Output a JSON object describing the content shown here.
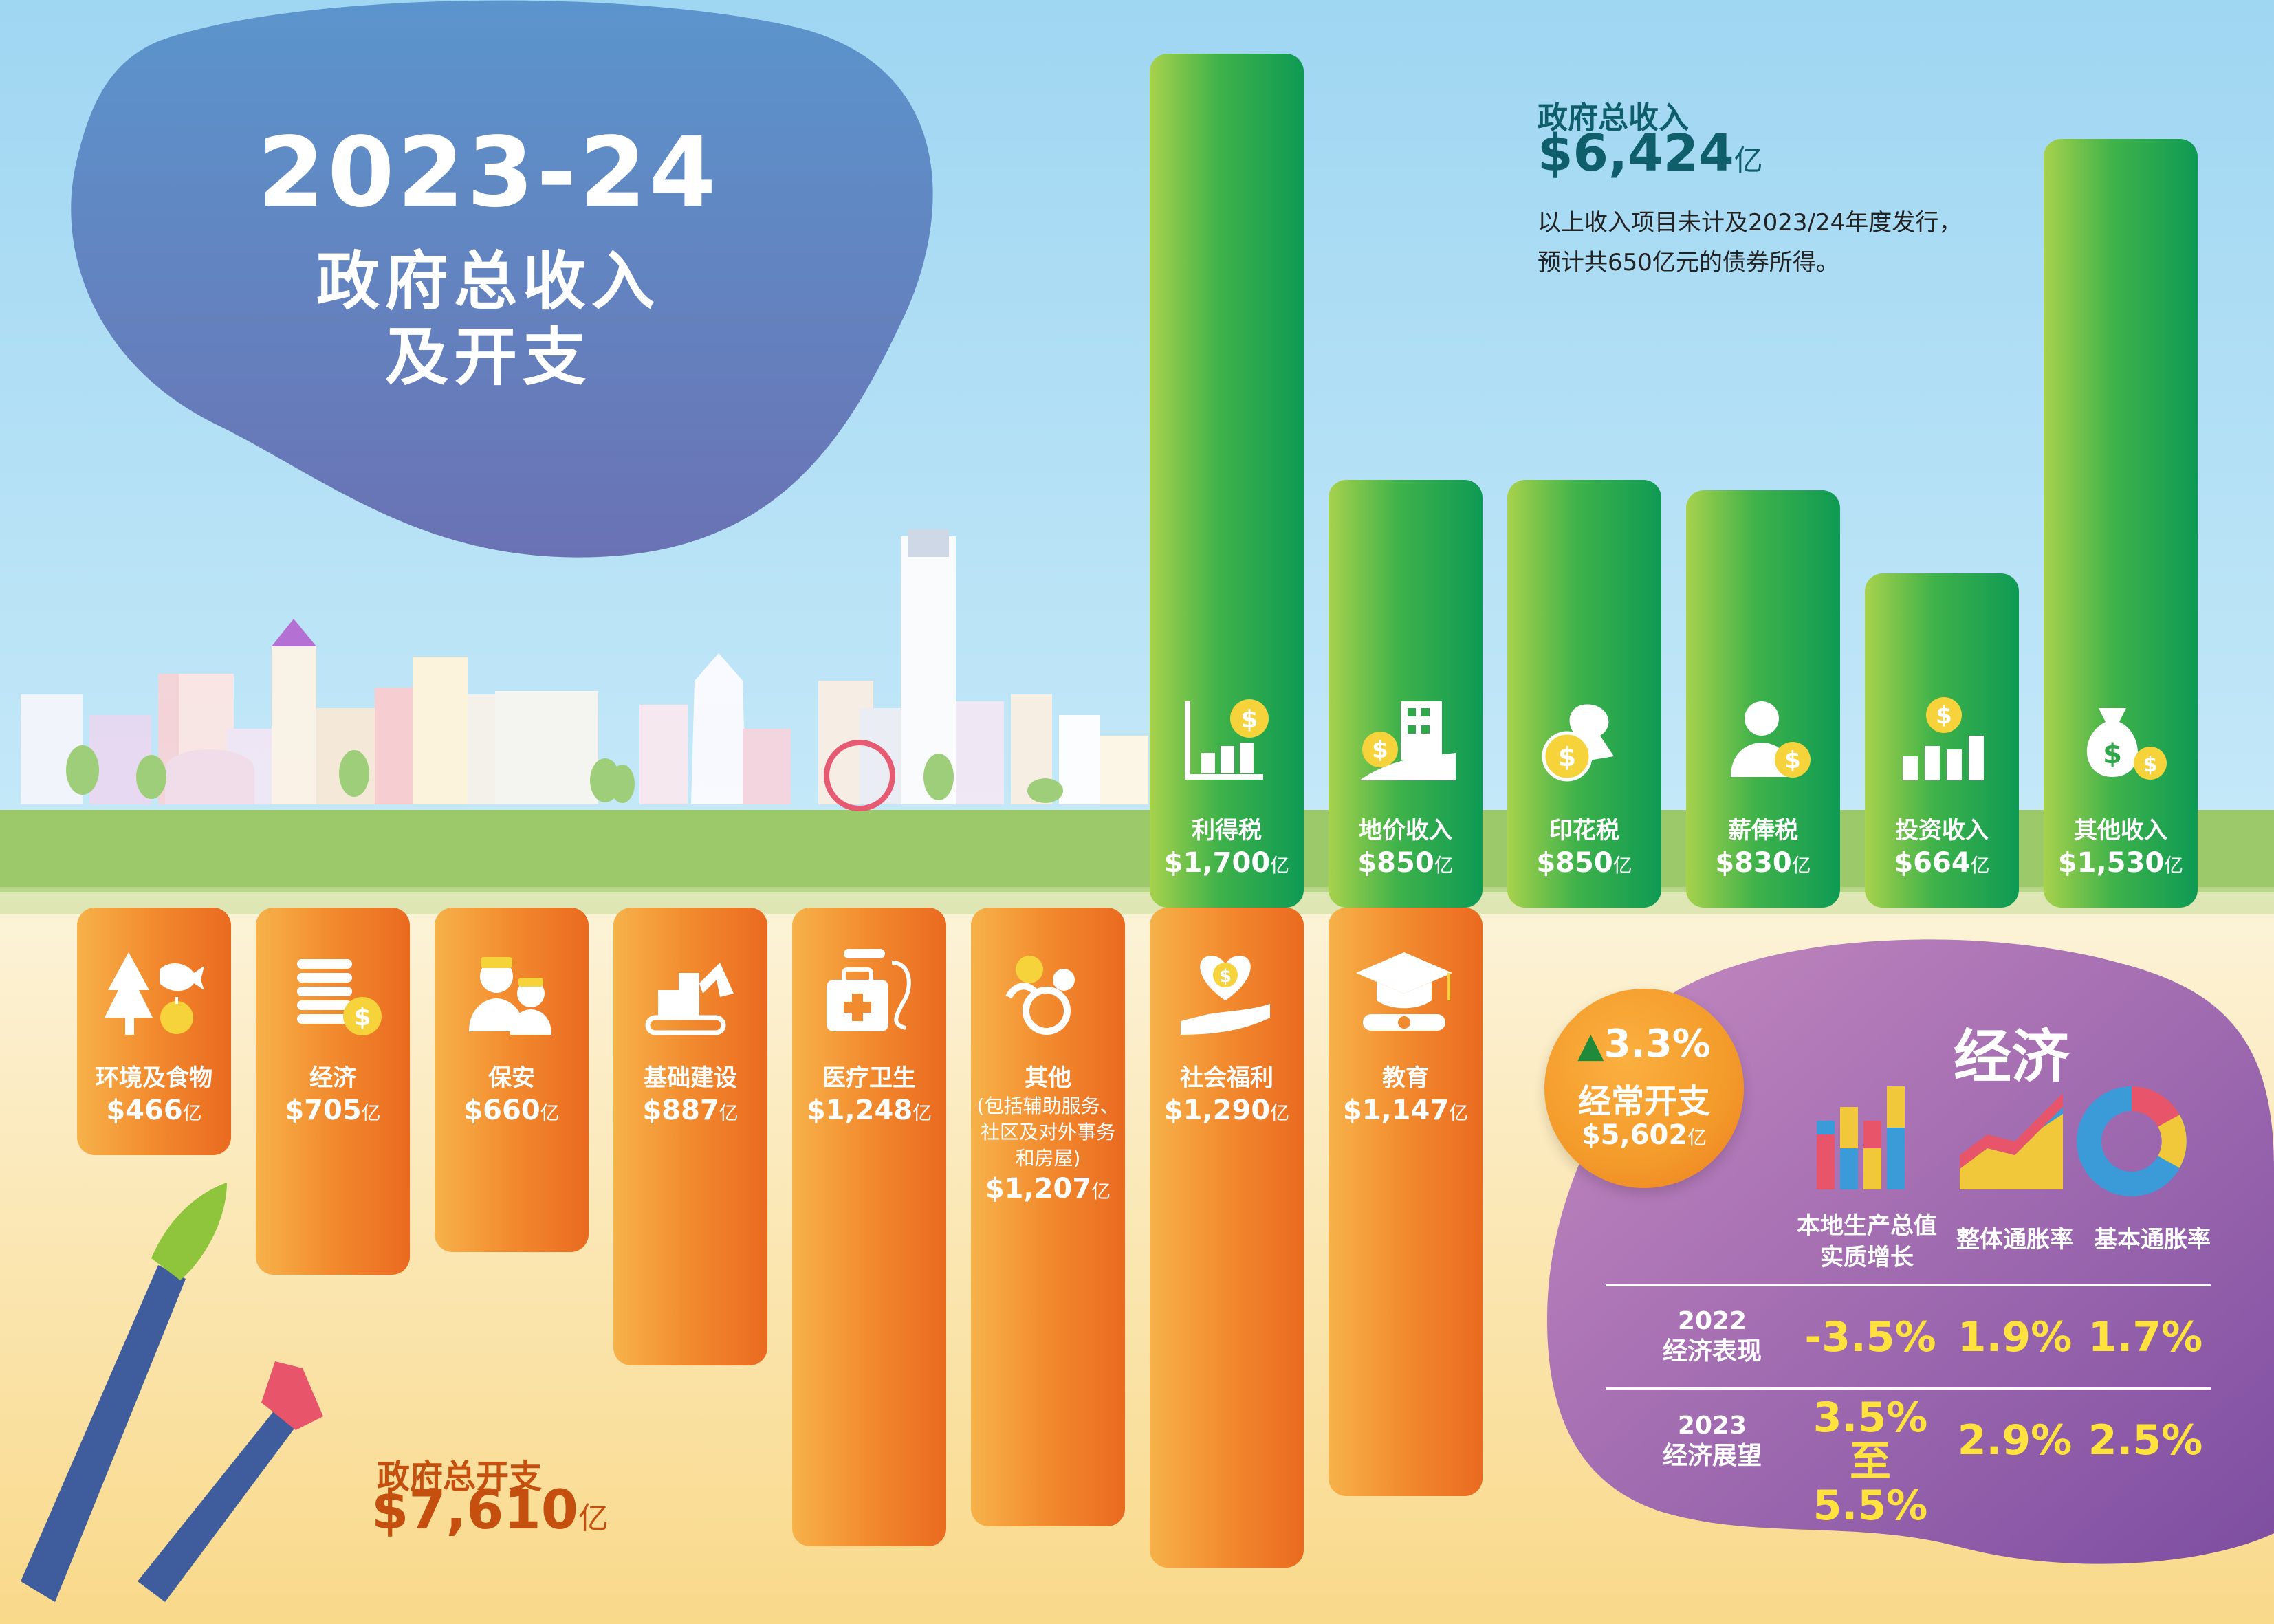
{
  "title": {
    "year": "2023-24",
    "line1": "政府总收入",
    "line2": "及开支"
  },
  "revenue": {
    "title": "政府总收入",
    "total": "$6,424",
    "unit": "亿",
    "note_line1": "以上收入项目未计及2023/24年度发行，",
    "note_line2": "预计共650亿元的债券所得。"
  },
  "expenditure": {
    "title": "政府总开支",
    "total": "$7,610",
    "unit": "亿"
  },
  "chart_data": {
    "type": "bar",
    "unit": "亿",
    "revenue_series": [
      {
        "label": "利得税",
        "value_label": "$1,700",
        "value": 1700,
        "icon": "profits-tax-chart-icon"
      },
      {
        "label": "地价收入",
        "value_label": "$850",
        "value": 850,
        "icon": "land-building-icon"
      },
      {
        "label": "印花税",
        "value_label": "$850",
        "value": 850,
        "icon": "stamp-icon"
      },
      {
        "label": "薪俸税",
        "value_label": "$830",
        "value": 830,
        "icon": "salaries-person-icon"
      },
      {
        "label": "投资收入",
        "value_label": "$664",
        "value": 664,
        "icon": "investment-bars-icon"
      },
      {
        "label": "其他收入",
        "value_label": "$1,530",
        "value": 1530,
        "icon": "money-bag-icon"
      }
    ],
    "expenditure_series": [
      {
        "label": "环境及食物",
        "value_label": "$466",
        "value": 466,
        "icon": "tree-fish-apple-icon"
      },
      {
        "label": "经济",
        "value_label": "$705",
        "value": 705,
        "icon": "coin-stack-icon"
      },
      {
        "label": "保安",
        "value_label": "$660",
        "value": 660,
        "icon": "security-officers-icon"
      },
      {
        "label": "基础建设",
        "value_label": "$887",
        "value": 887,
        "icon": "excavator-icon"
      },
      {
        "label": "医疗卫生",
        "value_label": "$1,248",
        "value": 1248,
        "icon": "medical-kit-icon"
      },
      {
        "label": "其他",
        "detail": [
          "(包括辅助服务、",
          "社区及对外事务",
          "和房屋)"
        ],
        "value_label": "$1,207",
        "value": 1207,
        "icon": "family-icon"
      },
      {
        "label": "社会福利",
        "value_label": "$1,290",
        "value": 1290,
        "icon": "heart-hand-icon"
      },
      {
        "label": "教育",
        "value_label": "$1,147",
        "value": 1147,
        "icon": "graduation-cap-icon"
      }
    ]
  },
  "recurrent": {
    "growth": "3.3%",
    "label": "经常开支",
    "value": "$5,602",
    "unit": "亿"
  },
  "economy": {
    "heading": "经济",
    "columns": [
      {
        "line1": "本地生产总值",
        "line2": "实质增长"
      },
      {
        "line1": "整体通胀率",
        "line2": ""
      },
      {
        "line1": "基本通胀率",
        "line2": ""
      }
    ],
    "rows": [
      {
        "line1": "2022",
        "line2": "经济表现",
        "values": [
          "-3.5%",
          "1.9%",
          "1.7%"
        ]
      },
      {
        "line1": "2023",
        "line2": "经济展望",
        "values": [
          "3.5%",
          "2.9%",
          "2.5%"
        ],
        "value0_line2": "至5.5%"
      }
    ]
  },
  "colors": {
    "revenue_green": "#2fa84a",
    "expenditure_orange": "#f28a2e",
    "economy_purple": "#8a55a8",
    "highlight_yellow": "#ffe23d"
  }
}
